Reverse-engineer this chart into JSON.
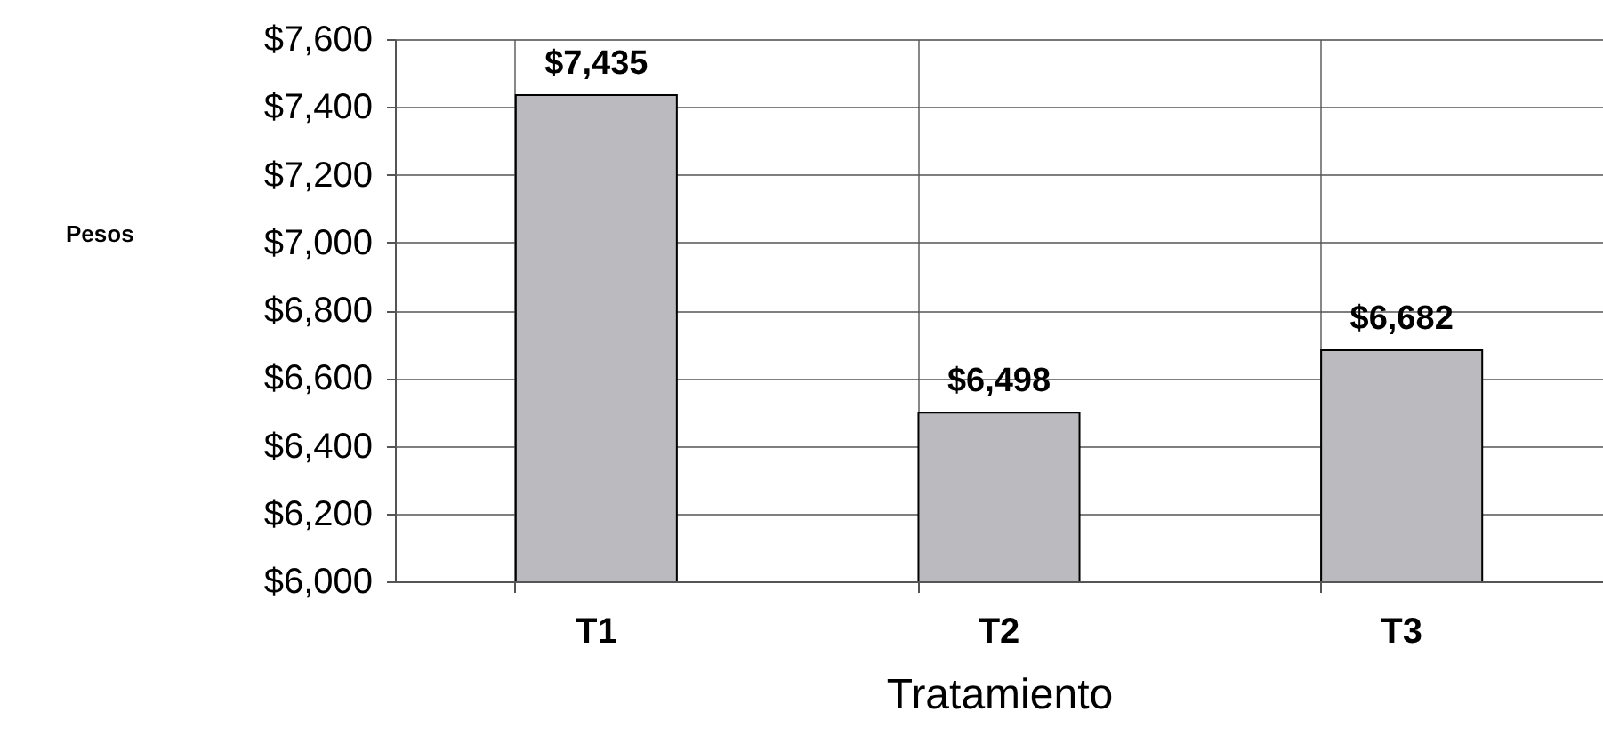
{
  "chart_data": {
    "type": "bar",
    "xlabel": "Tratamiento",
    "annotations": [
      "Pesos"
    ],
    "categories": [
      "T1",
      "T2",
      "T3"
    ],
    "values": [
      7435,
      6498,
      6682
    ],
    "value_labels": [
      "$7,435",
      "$6,498",
      "$6,682"
    ],
    "color": "#bbbbbf",
    "ylim": [
      6000,
      7600
    ],
    "yticks": [
      {
        "value": 6000,
        "label": "$6,000"
      },
      {
        "value": 6200,
        "label": "$6,200"
      },
      {
        "value": 6400,
        "label": "$6,400"
      },
      {
        "value": 6600,
        "label": "$6,600"
      },
      {
        "value": 6800,
        "label": "$6,800"
      },
      {
        "value": 7000,
        "label": "$7,000"
      },
      {
        "value": 7200,
        "label": "$7,200"
      },
      {
        "value": 7400,
        "label": "$7,400"
      },
      {
        "value": 7600,
        "label": "$7,600"
      }
    ],
    "grid": true
  }
}
